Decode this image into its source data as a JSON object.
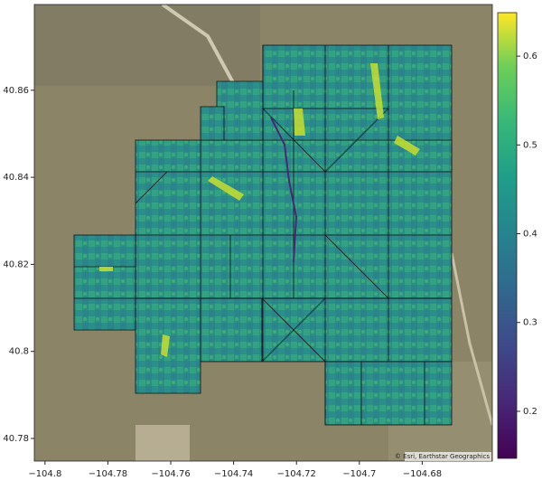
{
  "map": {
    "xlim": [
      -104.8034,
      -104.6577
    ],
    "ylim": [
      40.7748,
      40.8797
    ],
    "xticks": [
      {
        "value": -104.8,
        "label": "−104.8"
      },
      {
        "value": -104.78,
        "label": "−104.78"
      },
      {
        "value": -104.76,
        "label": "−104.76"
      },
      {
        "value": -104.74,
        "label": "−104.74"
      },
      {
        "value": -104.72,
        "label": "−104.72"
      },
      {
        "value": -104.7,
        "label": "−104.7"
      },
      {
        "value": -104.68,
        "label": "−104.68"
      }
    ],
    "yticks": [
      40.78,
      40.8,
      40.82,
      40.84,
      40.86
    ],
    "attribution": "© Esri, Earthstar Geographics",
    "colorbar": {
      "clim": [
        0.147,
        0.649
      ],
      "ticks": [
        0.2,
        0.3,
        0.4,
        0.5,
        0.6
      ]
    }
  }
}
